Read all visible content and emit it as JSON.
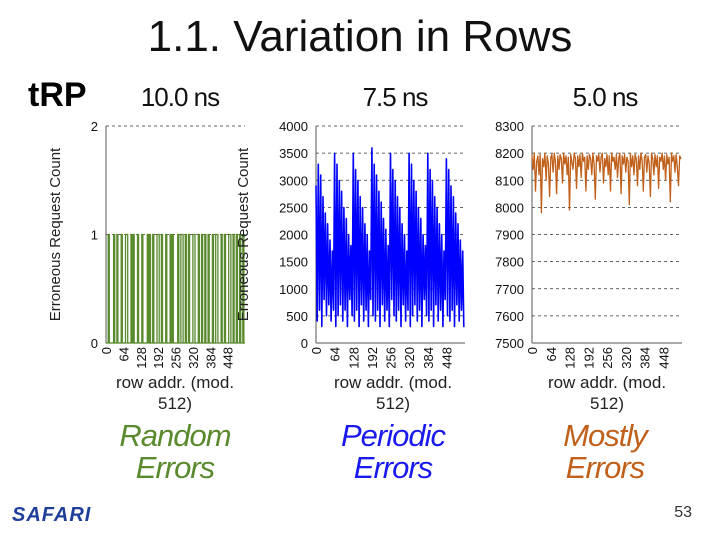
{
  "slide": {
    "title": "1.1. Variation in Rows",
    "parameter": "tRP",
    "footer_logo": "SAFARI",
    "page_number": "53"
  },
  "chart_data": [
    {
      "type": "line",
      "title": "10.0 ns",
      "ylabel": "Erroneous Request Count",
      "xlabel": "row addr. (mod. 512)",
      "caption": [
        "Random",
        "Errors"
      ],
      "color": "#5a8a2e",
      "xlim": [
        0,
        512
      ],
      "ylim": [
        0,
        2
      ],
      "xticks": [
        0,
        64,
        128,
        192,
        256,
        320,
        384,
        448
      ],
      "yticks": [
        0,
        1,
        2
      ],
      "grid": true,
      "series": [
        {
          "x": [
            0,
            4,
            8,
            12,
            16,
            20,
            24,
            28,
            32,
            36,
            40,
            44,
            48,
            52,
            56,
            60,
            64,
            68,
            72,
            76,
            80,
            84,
            88,
            92,
            96,
            100,
            104,
            108,
            112,
            116,
            120,
            124,
            128,
            132,
            136,
            140,
            144,
            148,
            152,
            156,
            160,
            164,
            168,
            172,
            176,
            180,
            184,
            188,
            192,
            196,
            200,
            204,
            208,
            212,
            216,
            220,
            224,
            228,
            232,
            236,
            240,
            244,
            248,
            252,
            256,
            260,
            264,
            268,
            272,
            276,
            280,
            284,
            288,
            292,
            296,
            300,
            304,
            308,
            312,
            316,
            320,
            324,
            328,
            332,
            336,
            340,
            344,
            348,
            352,
            356,
            360,
            364,
            368,
            372,
            376,
            380,
            384,
            388,
            392,
            396,
            400,
            404,
            408,
            412,
            416,
            420,
            424,
            428,
            432,
            436,
            440,
            444,
            448,
            452,
            456,
            460,
            464,
            468,
            472,
            476,
            480,
            484,
            488,
            492,
            496,
            500,
            504,
            508
          ],
          "values": [
            0,
            0,
            1,
            0,
            0,
            0,
            0,
            1,
            0,
            0,
            1,
            0,
            0,
            0,
            1,
            0,
            0,
            0,
            1,
            1,
            0,
            0,
            0,
            1,
            0,
            1,
            0,
            0,
            0,
            1,
            0,
            0,
            0,
            1,
            0,
            0,
            0,
            0,
            1,
            0,
            1,
            0,
            0,
            1,
            0,
            0,
            0,
            1,
            1,
            0,
            0,
            1,
            0,
            0,
            0,
            1,
            0,
            0,
            0,
            1,
            0,
            1,
            0,
            0,
            0,
            0,
            1,
            0,
            0,
            1,
            1,
            0,
            0,
            1,
            0,
            0,
            1,
            0,
            0,
            0,
            1,
            1,
            0,
            0,
            0,
            1,
            0,
            0,
            1,
            0,
            0,
            1,
            0,
            0,
            1,
            0,
            0,
            0,
            1,
            0,
            0,
            1,
            1,
            0,
            0,
            0,
            1,
            0,
            0,
            1,
            0,
            0,
            0,
            1,
            1,
            0,
            0,
            1,
            0,
            0,
            1,
            0,
            0,
            1,
            0,
            0,
            1,
            0
          ]
        }
      ]
    },
    {
      "type": "line",
      "title": "7.5 ns",
      "ylabel": "Erroneous Request Count",
      "xlabel": "row addr. (mod. 512)",
      "caption": [
        "Periodic",
        "Errors"
      ],
      "color": "#0000ff",
      "xlim": [
        0,
        512
      ],
      "ylim": [
        0,
        4000
      ],
      "xticks": [
        0,
        64,
        128,
        192,
        256,
        320,
        384,
        448
      ],
      "yticks": [
        0,
        500,
        1000,
        1500,
        2000,
        2500,
        3000,
        3500,
        4000
      ],
      "grid": true,
      "series": [
        {
          "x": [
            0,
            4,
            8,
            12,
            16,
            20,
            24,
            28,
            32,
            36,
            40,
            44,
            48,
            52,
            56,
            60,
            64,
            68,
            72,
            76,
            80,
            84,
            88,
            92,
            96,
            100,
            104,
            108,
            112,
            116,
            120,
            124,
            128,
            132,
            136,
            140,
            144,
            148,
            152,
            156,
            160,
            164,
            168,
            172,
            176,
            180,
            184,
            188,
            192,
            196,
            200,
            204,
            208,
            212,
            216,
            220,
            224,
            228,
            232,
            236,
            240,
            244,
            248,
            252,
            256,
            260,
            264,
            268,
            272,
            276,
            280,
            284,
            288,
            292,
            296,
            300,
            304,
            308,
            312,
            316,
            320,
            324,
            328,
            332,
            336,
            340,
            344,
            348,
            352,
            356,
            360,
            364,
            368,
            372,
            376,
            380,
            384,
            388,
            392,
            396,
            400,
            404,
            408,
            412,
            416,
            420,
            424,
            428,
            432,
            436,
            440,
            444,
            448,
            452,
            456,
            460,
            464,
            468,
            472,
            476,
            480,
            484,
            488,
            492,
            496,
            500,
            504,
            508
          ],
          "values": [
            2900,
            400,
            3300,
            600,
            3100,
            300,
            2700,
            800,
            2400,
            500,
            2200,
            700,
            1900,
            400,
            1700,
            600,
            3500,
            300,
            3300,
            500,
            3000,
            700,
            2800,
            400,
            2500,
            600,
            2300,
            300,
            2000,
            800,
            1800,
            500,
            3500,
            400,
            3200,
            600,
            3000,
            300,
            2700,
            700,
            2500,
            400,
            2200,
            600,
            2000,
            300,
            1700,
            800,
            3600,
            500,
            3300,
            400,
            3100,
            600,
            2800,
            300,
            2600,
            700,
            2300,
            400,
            2100,
            600,
            1800,
            300,
            3500,
            800,
            3200,
            500,
            3000,
            400,
            2700,
            600,
            2500,
            300,
            2200,
            700,
            2000,
            400,
            1700,
            600,
            3500,
            300,
            3300,
            500,
            3000,
            700,
            2800,
            400,
            2500,
            600,
            2300,
            300,
            2000,
            800,
            1800,
            500,
            3500,
            400,
            3200,
            600,
            3000,
            300,
            2700,
            700,
            2500,
            400,
            2200,
            600,
            2000,
            300,
            1700,
            800,
            3400,
            500,
            3200,
            400,
            2900,
            600,
            2700,
            300,
            2400,
            700,
            2200,
            400,
            1900,
            600,
            1700,
            300
          ]
        }
      ]
    },
    {
      "type": "line",
      "title": "5.0 ns",
      "xlabel": "row addr. (mod. 512)",
      "caption": [
        "Mostly",
        "Errors"
      ],
      "color": "#c0601a",
      "xlim": [
        0,
        512
      ],
      "ylim": [
        7500,
        8300
      ],
      "xticks": [
        0,
        64,
        128,
        192,
        256,
        320,
        384,
        448
      ],
      "yticks": [
        7500,
        7600,
        7700,
        7800,
        7900,
        8000,
        8100,
        8200,
        8300
      ],
      "grid": true,
      "series": [
        {
          "x": [
            0,
            4,
            8,
            12,
            16,
            20,
            24,
            28,
            32,
            36,
            40,
            44,
            48,
            52,
            56,
            60,
            64,
            68,
            72,
            76,
            80,
            84,
            88,
            92,
            96,
            100,
            104,
            108,
            112,
            116,
            120,
            124,
            128,
            132,
            136,
            140,
            144,
            148,
            152,
            156,
            160,
            164,
            168,
            172,
            176,
            180,
            184,
            188,
            192,
            196,
            200,
            204,
            208,
            212,
            216,
            220,
            224,
            228,
            232,
            236,
            240,
            244,
            248,
            252,
            256,
            260,
            264,
            268,
            272,
            276,
            280,
            284,
            288,
            292,
            296,
            300,
            304,
            308,
            312,
            316,
            320,
            324,
            328,
            332,
            336,
            340,
            344,
            348,
            352,
            356,
            360,
            364,
            368,
            372,
            376,
            380,
            384,
            388,
            392,
            396,
            400,
            404,
            408,
            412,
            416,
            420,
            424,
            428,
            432,
            436,
            440,
            444,
            448,
            452,
            456,
            460,
            464,
            468,
            472,
            476,
            480,
            484,
            488,
            492,
            496,
            500,
            504,
            508
          ],
          "values": [
            8190,
            8140,
            8200,
            8060,
            8170,
            8190,
            8120,
            8195,
            7980,
            8180,
            8150,
            8200,
            8100,
            8190,
            8160,
            8040,
            8185,
            8195,
            8130,
            8200,
            8170,
            8050,
            8190,
            8140,
            8195,
            8180,
            8090,
            8200,
            8160,
            8190,
            8120,
            8185,
            7990,
            8195,
            8170,
            8140,
            8200,
            8180,
            8070,
            8190,
            8150,
            8195,
            8110,
            8200,
            8170,
            8185,
            8060,
            8190,
            8140,
            8195,
            8180,
            8120,
            8200,
            8160,
            8030,
            8190,
            8170,
            8195,
            8130,
            8185,
            8200,
            8090,
            8180,
            8150,
            8195,
            8120,
            8190,
            8060,
            8200,
            8170,
            8185,
            8140,
            8195,
            8110,
            8180,
            8200,
            8050,
            8190,
            8160,
            8195,
            8130,
            8185,
            8170,
            8010,
            8200,
            8150,
            8190,
            8120,
            8195,
            8180,
            8080,
            8190,
            8140,
            8200,
            8170,
            8060,
            8185,
            8195,
            8130,
            8190,
            8160,
            8040,
            8200,
            8180,
            8120,
            8195,
            8150,
            8190,
            8070,
            8185,
            8170,
            8200,
            8140,
            8190,
            8100,
            8195,
            8160,
            8185,
            8020,
            8200,
            8170,
            8190,
            8130,
            8195,
            8150,
            8080,
            8190,
            8180
          ]
        }
      ]
    }
  ]
}
